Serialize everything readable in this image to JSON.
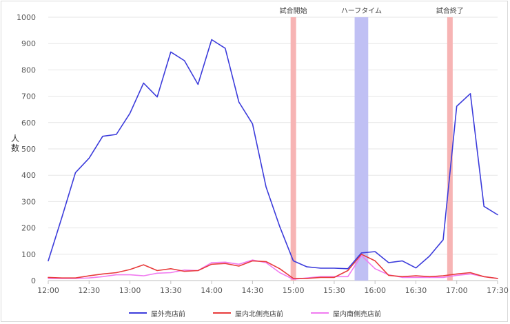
{
  "chart_data": {
    "type": "line",
    "title": "",
    "xlabel": "",
    "ylabel": "人数",
    "ylim": [
      0,
      1000
    ],
    "yticks": [
      0,
      100,
      200,
      300,
      400,
      500,
      600,
      700,
      800,
      900,
      1000
    ],
    "xticks": [
      "12:00",
      "12:30",
      "13:00",
      "13:30",
      "14:00",
      "14:30",
      "15:00",
      "15:30",
      "16:00",
      "16:30",
      "17:00",
      "17:30"
    ],
    "grid": true,
    "legend_position": "bottom",
    "x": [
      "12:00",
      "12:10",
      "12:20",
      "12:30",
      "12:40",
      "12:50",
      "13:00",
      "13:10",
      "13:20",
      "13:30",
      "13:40",
      "13:50",
      "14:00",
      "14:10",
      "14:20",
      "14:30",
      "14:40",
      "14:50",
      "15:00",
      "15:10",
      "15:20",
      "15:30",
      "15:40",
      "15:50",
      "16:00",
      "16:10",
      "16:20",
      "16:30",
      "16:40",
      "16:50",
      "17:00",
      "17:10",
      "17:20",
      "17:30"
    ],
    "series": [
      {
        "name": "屋外売店前",
        "color": "#3b3bdb",
        "values": [
          75,
          240,
          410,
          465,
          548,
          555,
          635,
          750,
          697,
          868,
          835,
          745,
          915,
          882,
          678,
          595,
          355,
          205,
          75,
          52,
          47,
          47,
          45,
          105,
          110,
          68,
          75,
          48,
          93,
          155,
          662,
          710,
          282,
          250
        ]
      },
      {
        "name": "屋内北側売店前",
        "color": "#e83a3a",
        "values": [
          12,
          10,
          10,
          18,
          25,
          30,
          42,
          60,
          38,
          45,
          35,
          38,
          62,
          65,
          55,
          75,
          72,
          45,
          8,
          8,
          12,
          12,
          38,
          100,
          75,
          20,
          15,
          18,
          15,
          18,
          25,
          30,
          15,
          8
        ]
      },
      {
        "name": "屋内南側売店前",
        "color": "#f07af0",
        "values": [
          8,
          8,
          8,
          10,
          15,
          22,
          22,
          18,
          28,
          30,
          40,
          38,
          68,
          70,
          62,
          78,
          68,
          30,
          5,
          10,
          15,
          15,
          15,
          95,
          45,
          22,
          12,
          12,
          12,
          12,
          20,
          25,
          15,
          8
        ]
      }
    ],
    "annotations": [
      {
        "label": "試合開始",
        "start": "15:00",
        "end": "15:00",
        "color": "#f7b4b4",
        "kind": "line"
      },
      {
        "label": "ハーフタイム",
        "start": "15:45",
        "end": "15:55",
        "color": "#c0c0f4",
        "kind": "band"
      },
      {
        "label": "試合終了",
        "start": "16:55",
        "end": "16:55",
        "color": "#f7b4b4",
        "kind": "line"
      }
    ]
  }
}
